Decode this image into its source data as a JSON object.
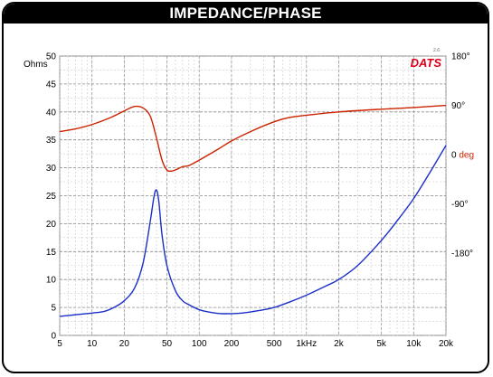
{
  "header": {
    "title": "IMPEDANCE/PHASE"
  },
  "logo": {
    "text": "DATS",
    "version": "2.6",
    "color": "#e0001a"
  },
  "colors": {
    "impedance": "#1a2fc8",
    "phase": "#cc2200",
    "left_label": "#1a2fc8",
    "right_label": "#cc2200"
  },
  "chart_data": {
    "type": "line",
    "title": "IMPEDANCE/PHASE",
    "xlabel": "",
    "ylabel": "Ohms",
    "y2label": "deg",
    "x_scale": "log",
    "xlim": [
      5,
      20000
    ],
    "ylim": [
      0,
      50
    ],
    "y2lim": [
      -330,
      180
    ],
    "grid": true,
    "x_ticks": [
      {
        "value": 5,
        "label": "5"
      },
      {
        "value": 10,
        "label": "10"
      },
      {
        "value": 20,
        "label": "20"
      },
      {
        "value": 50,
        "label": "50"
      },
      {
        "value": 100,
        "label": "100"
      },
      {
        "value": 200,
        "label": "200"
      },
      {
        "value": 500,
        "label": "500"
      },
      {
        "value": 1000,
        "label": "1kHz"
      },
      {
        "value": 2000,
        "label": "2k"
      },
      {
        "value": 5000,
        "label": "5k"
      },
      {
        "value": 10000,
        "label": "10k"
      },
      {
        "value": 20000,
        "label": "20k"
      }
    ],
    "y_ticks": [
      {
        "value": 0,
        "label": "0"
      },
      {
        "value": 5,
        "label": "5"
      },
      {
        "value": 10,
        "label": "10"
      },
      {
        "value": 15,
        "label": "15"
      },
      {
        "value": 20,
        "label": "20"
      },
      {
        "value": 25,
        "label": "25"
      },
      {
        "value": 30,
        "label": "30"
      },
      {
        "value": 35,
        "label": "35"
      },
      {
        "value": 40,
        "label": "40"
      },
      {
        "value": 45,
        "label": "45"
      },
      {
        "value": 50,
        "label": "50"
      }
    ],
    "y2_ticks": [
      {
        "value": 180,
        "label": "180°"
      },
      {
        "value": 90,
        "label": "90°"
      },
      {
        "value": 0,
        "label": "0 deg"
      },
      {
        "value": -90,
        "label": "-90°"
      },
      {
        "value": -180,
        "label": "-180°"
      }
    ],
    "series": [
      {
        "name": "Impedance",
        "axis": "left",
        "x": [
          5,
          7,
          10,
          13,
          16,
          20,
          25,
          30,
          35,
          38,
          40,
          42,
          45,
          50,
          60,
          70,
          80,
          100,
          130,
          160,
          200,
          250,
          300,
          400,
          500,
          700,
          1000,
          1500,
          2000,
          3000,
          5000,
          7000,
          10000,
          14000,
          20000
        ],
        "values": [
          3.4,
          3.7,
          4.0,
          4.3,
          5.0,
          6.2,
          8.5,
          13.0,
          20.5,
          25.0,
          26.0,
          24.0,
          18.0,
          12.5,
          8.0,
          6.2,
          5.5,
          4.6,
          4.1,
          3.9,
          3.9,
          4.0,
          4.2,
          4.6,
          5.0,
          6.0,
          7.2,
          8.8,
          10.0,
          12.5,
          17.0,
          20.5,
          24.5,
          29.0,
          34.0
        ]
      },
      {
        "name": "Phase",
        "axis": "right",
        "x": [
          5,
          7,
          10,
          15,
          20,
          25,
          30,
          35,
          40,
          45,
          50,
          55,
          60,
          70,
          80,
          100,
          150,
          200,
          300,
          500,
          700,
          1000,
          2000,
          5000,
          10000,
          20000
        ],
        "values": [
          42,
          47,
          55,
          68,
          80,
          88,
          85,
          70,
          30,
          -10,
          -28,
          -30,
          -28,
          -22,
          -20,
          -10,
          10,
          25,
          42,
          60,
          68,
          72,
          78,
          83,
          86,
          90
        ]
      }
    ]
  }
}
